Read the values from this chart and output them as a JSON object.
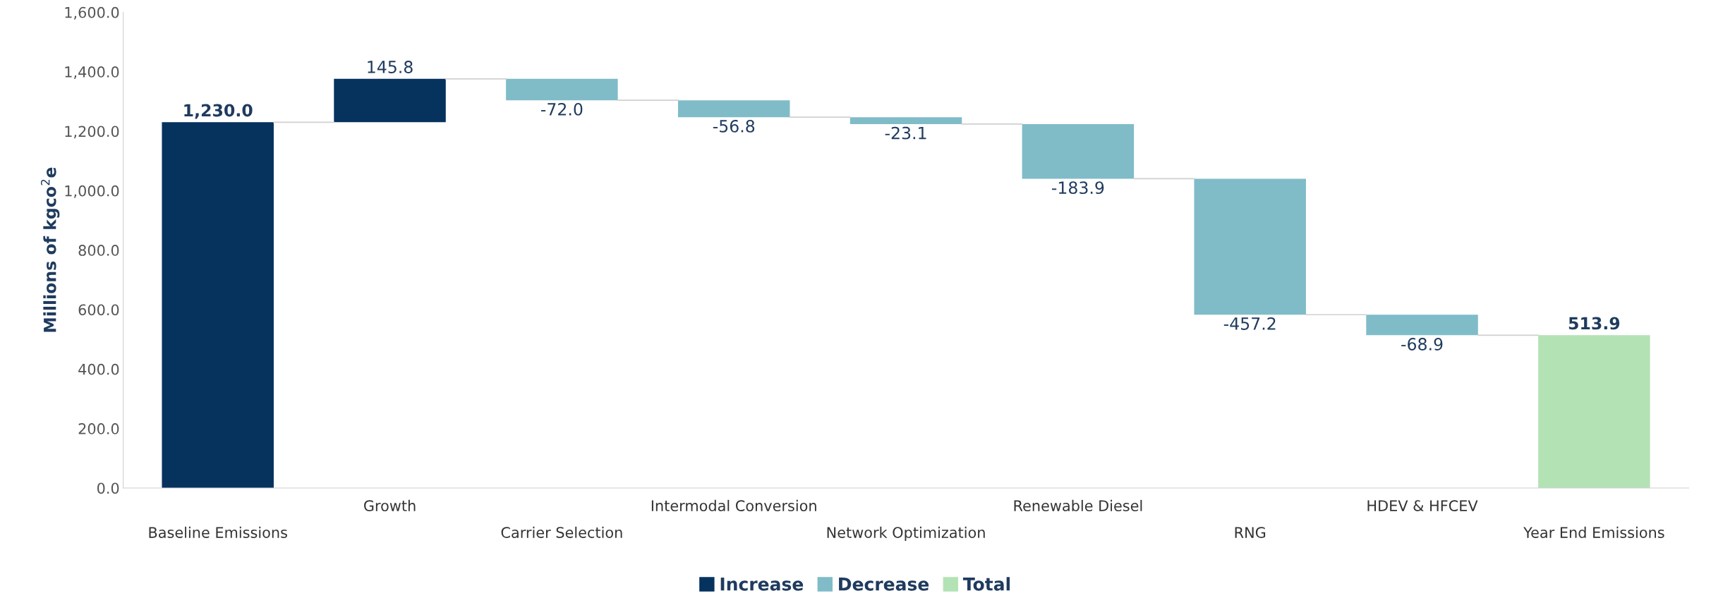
{
  "chart_data": {
    "type": "bar",
    "ylabel": "Millions of kgco$^{2}$e",
    "categories": [
      "Baseline Emissions",
      "Growth",
      "Carrier Selection",
      "Intermodal Conversion",
      "Network Optimization",
      "Renewable Diesel",
      "RNG",
      "HDEV & HFCEV",
      "Year End Emissions"
    ],
    "series": [
      {
        "name": "Increase",
        "color": "#06325e",
        "base": [
          0,
          1230.0,
          null,
          null,
          null,
          null,
          null,
          null,
          null
        ],
        "values": [
          1230.0,
          145.8,
          null,
          null,
          null,
          null,
          null,
          null,
          null
        ],
        "value_labels": [
          "1,230.0",
          "145.8",
          null,
          null,
          null,
          null,
          null,
          null,
          null
        ]
      },
      {
        "name": "Decrease",
        "color": "#7fbcc8",
        "base": [
          null,
          null,
          1375.8,
          1303.8,
          1247.0,
          1223.9,
          1040.0,
          582.8,
          null
        ],
        "values": [
          null,
          null,
          -72.0,
          -56.8,
          -23.1,
          -183.9,
          -457.2,
          -68.9,
          null
        ],
        "value_labels": [
          null,
          null,
          "-72.0",
          "-56.8",
          "-23.1",
          "-183.9",
          "-457.2",
          "-68.9",
          null
        ]
      },
      {
        "name": "Total",
        "color": "#b3e3b5",
        "base": [
          null,
          null,
          null,
          null,
          null,
          null,
          null,
          null,
          0
        ],
        "values": [
          null,
          null,
          null,
          null,
          null,
          null,
          null,
          null,
          513.9
        ],
        "value_labels": [
          null,
          null,
          null,
          null,
          null,
          null,
          null,
          null,
          "513.9"
        ]
      }
    ],
    "ylim": [
      0,
      1600
    ],
    "yticks": [
      {
        "value": 0,
        "label": "0.0"
      },
      {
        "value": 200,
        "label": "200.0"
      },
      {
        "value": 400,
        "label": "400.0"
      },
      {
        "value": 600,
        "label": "600.0"
      },
      {
        "value": 800,
        "label": "800.0"
      },
      {
        "value": 1000,
        "label": "1,000.0"
      },
      {
        "value": 1200,
        "label": "1,200.0"
      },
      {
        "value": 1400,
        "label": "1,400.0"
      },
      {
        "value": 1600,
        "label": "1,600.0"
      }
    ],
    "grid": false,
    "legend": "bottom"
  }
}
